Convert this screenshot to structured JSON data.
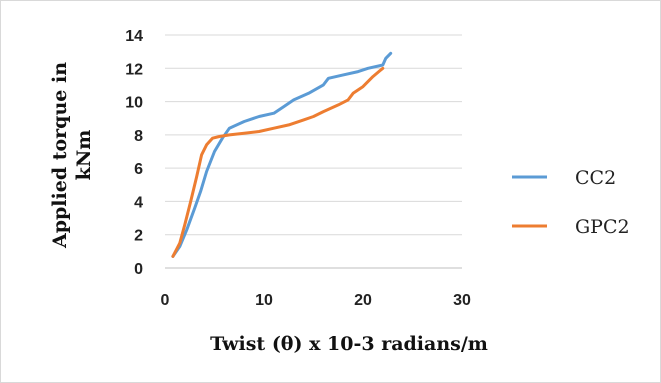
{
  "chart_data": {
    "type": "line",
    "xlabel": "Twist (θ) x 10-3 radians/m",
    "ylabel_line1": "Applied torque in",
    "ylabel_line2": "kNm",
    "xlim": [
      0,
      30
    ],
    "ylim": [
      0,
      14
    ],
    "xticks": [
      "0",
      "10",
      "20",
      "30"
    ],
    "yticks": [
      "0",
      "2",
      "4",
      "6",
      "8",
      "10",
      "12",
      "14"
    ],
    "grid": "horizontal",
    "legend_position": "right",
    "series": [
      {
        "name": "CC2",
        "color": "#5B9BD5",
        "x": [
          0.8,
          1.5,
          2.2,
          3.0,
          3.6,
          4.2,
          5.0,
          5.8,
          6.5,
          8.0,
          9.5,
          11.0,
          12.0,
          13.0,
          14.5,
          16.0,
          16.5,
          18.0,
          19.5,
          20.5,
          22.0,
          22.3,
          22.8
        ],
        "y": [
          0.7,
          1.3,
          2.3,
          3.6,
          4.6,
          5.8,
          7.0,
          7.8,
          8.4,
          8.8,
          9.1,
          9.3,
          9.7,
          10.1,
          10.5,
          11.0,
          11.4,
          11.6,
          11.8,
          12.0,
          12.2,
          12.6,
          12.9
        ]
      },
      {
        "name": "GPC2",
        "color": "#ED7D31",
        "x": [
          0.8,
          1.5,
          2.0,
          2.6,
          3.2,
          3.7,
          4.2,
          4.8,
          5.5,
          6.5,
          8.0,
          9.5,
          11.0,
          12.5,
          14.0,
          15.0,
          16.0,
          17.5,
          18.5,
          19.0,
          20.0,
          21.0,
          22.0
        ],
        "y": [
          0.7,
          1.5,
          2.6,
          4.0,
          5.5,
          6.8,
          7.4,
          7.8,
          7.9,
          8.0,
          8.1,
          8.2,
          8.4,
          8.6,
          8.9,
          9.1,
          9.4,
          9.8,
          10.1,
          10.5,
          10.9,
          11.5,
          12.0
        ]
      }
    ]
  }
}
